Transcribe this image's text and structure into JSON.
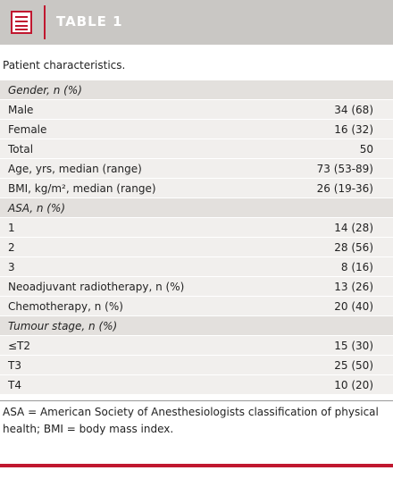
{
  "header": {
    "title": "TABLE 1"
  },
  "caption": "Patient characteristics.",
  "table": {
    "rows": [
      [
        "Gender, n (%)"
      ],
      [
        "Male",
        "34 (68)"
      ],
      [
        "Female",
        "16 (32)"
      ],
      [
        "Total",
        "50"
      ],
      [
        "Age, yrs, median (range)",
        "73 (53-89)"
      ],
      [
        "BMI, kg/m², median (range)",
        "26 (19-36)"
      ],
      [
        "ASA, n (%)"
      ],
      [
        "1",
        "14 (28)"
      ],
      [
        "2",
        "28 (56)"
      ],
      [
        "3",
        "8 (16)"
      ],
      [
        "Neoadjuvant radiotherapy, n (%)",
        "13 (26)"
      ],
      [
        "Chemotherapy, n (%)",
        "20 (40)"
      ],
      [
        "Tumour stage, n (%)"
      ],
      [
        "≤T2",
        "15 (30)"
      ],
      [
        "T3",
        "25 (50)"
      ],
      [
        "T4",
        "10 (20)"
      ]
    ]
  },
  "footnote": "ASA = American Society of Anesthesiologists classification of physical health;  BMI = body mass index."
}
